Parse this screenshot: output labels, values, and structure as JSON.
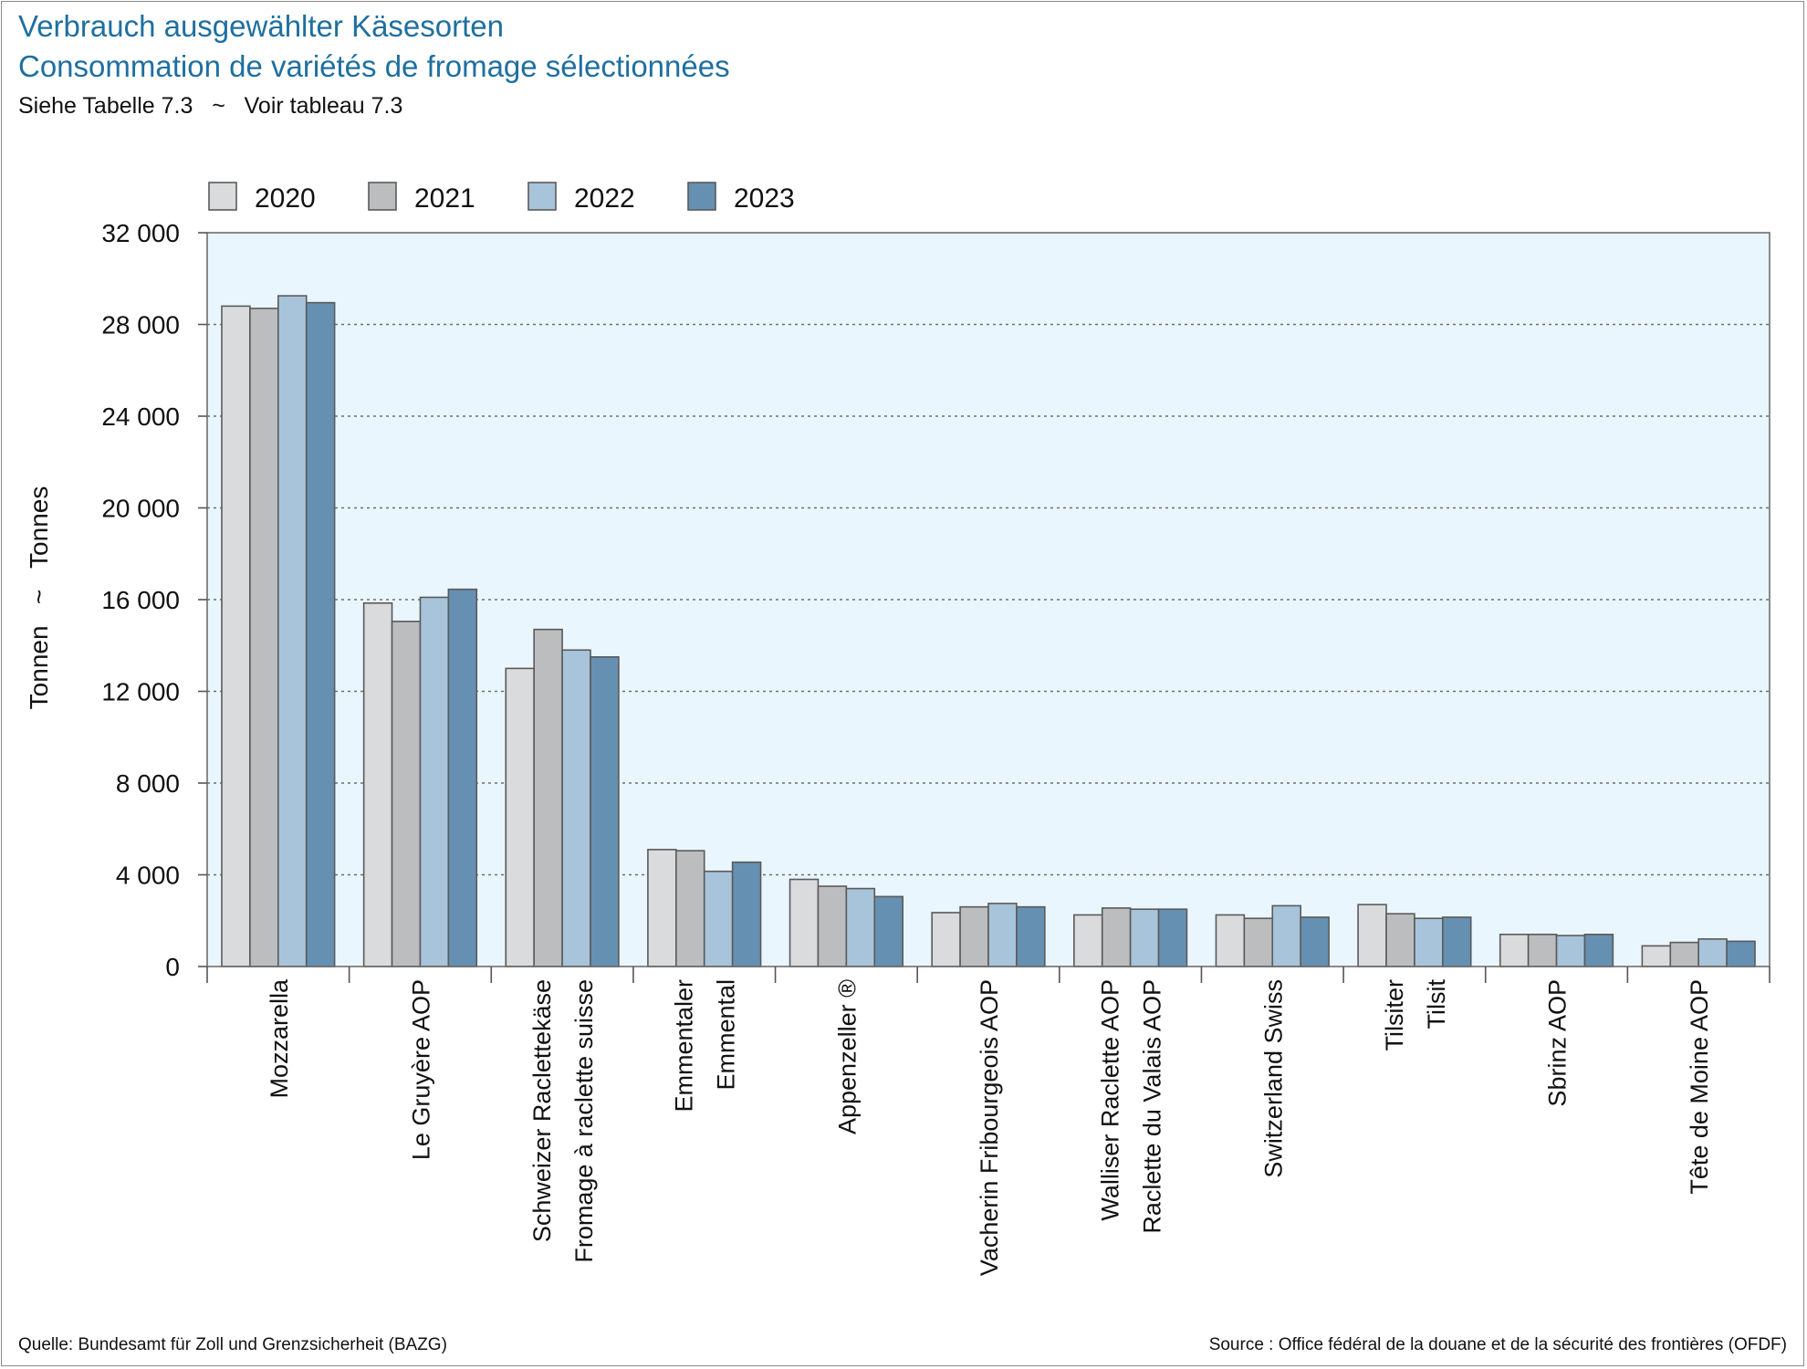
{
  "title_de": "Verbrauch ausgewählter Käsesorten",
  "title_fr": "Consommation de variétés de fromage sélectionnées",
  "subtitle": "Siehe Tabelle 7.3   ~   Voir tableau 7.3",
  "source_de": "Quelle: Bundesamt für Zoll und Grenzsicherheit (BAZG)",
  "source_fr": "Source : Office fédéral de la douane et de la sécurité des frontières (OFDF)",
  "chart_data": {
    "type": "bar",
    "ylabel": "Tonnen   ~   Tonnes",
    "ylim": [
      0,
      32000
    ],
    "yticks": [
      0,
      4000,
      8000,
      12000,
      16000,
      20000,
      24000,
      28000,
      32000
    ],
    "ytick_labels": [
      "0",
      "4 000",
      "8 000",
      "12 000",
      "16 000",
      "20 000",
      "24 000",
      "28 000",
      "32 000"
    ],
    "grid": "horizontal dotted",
    "legend_position": "top",
    "plot_background": "#eaf6fe",
    "categories": [
      [
        "Mozzarella"
      ],
      [
        "Le Gruyère AOP"
      ],
      [
        "Schweizer Raclettekäse",
        "Fromage à raclette suisse"
      ],
      [
        "Emmentaler",
        "Emmental"
      ],
      [
        "Appenzeller ®"
      ],
      [
        "Vacherin Fribourgeois AOP"
      ],
      [
        "Walliser Raclette AOP",
        "Raclette du Valais AOP"
      ],
      [
        "Switzerland Swiss"
      ],
      [
        "Tilsiter",
        "Tilsit"
      ],
      [
        "Sbrinz AOP"
      ],
      [
        "Tête de Moine AOP"
      ]
    ],
    "series": [
      {
        "name": "2020",
        "color": "#d9dbdc",
        "values": [
          28800,
          15850,
          13000,
          5100,
          3800,
          2350,
          2250,
          2250,
          2700,
          1400,
          900
        ]
      },
      {
        "name": "2021",
        "color": "#bcbdbe",
        "values": [
          28700,
          15050,
          14700,
          5050,
          3500,
          2600,
          2550,
          2100,
          2300,
          1400,
          1050
        ]
      },
      {
        "name": "2022",
        "color": "#a8c4da",
        "values": [
          29250,
          16100,
          13800,
          4150,
          3400,
          2750,
          2500,
          2650,
          2100,
          1350,
          1200
        ]
      },
      {
        "name": "2023",
        "color": "#6690b2",
        "values": [
          28950,
          16450,
          13500,
          4550,
          3050,
          2600,
          2500,
          2150,
          2150,
          1400,
          1100
        ]
      }
    ]
  }
}
